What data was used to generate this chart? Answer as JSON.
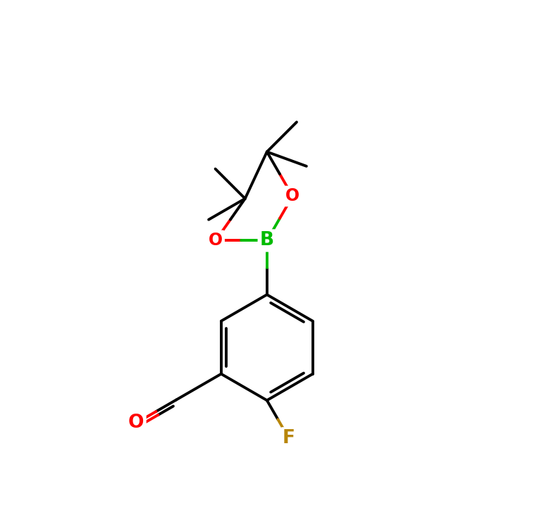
{
  "bg_color": "#ffffff",
  "bond_lw": 2.8,
  "font_size": 18,
  "colors": {
    "O": "#ff0000",
    "B": "#00bb00",
    "F": "#b8860b",
    "bond": "#000000"
  },
  "figsize": [
    7.89,
    7.38
  ],
  "dpi": 100
}
